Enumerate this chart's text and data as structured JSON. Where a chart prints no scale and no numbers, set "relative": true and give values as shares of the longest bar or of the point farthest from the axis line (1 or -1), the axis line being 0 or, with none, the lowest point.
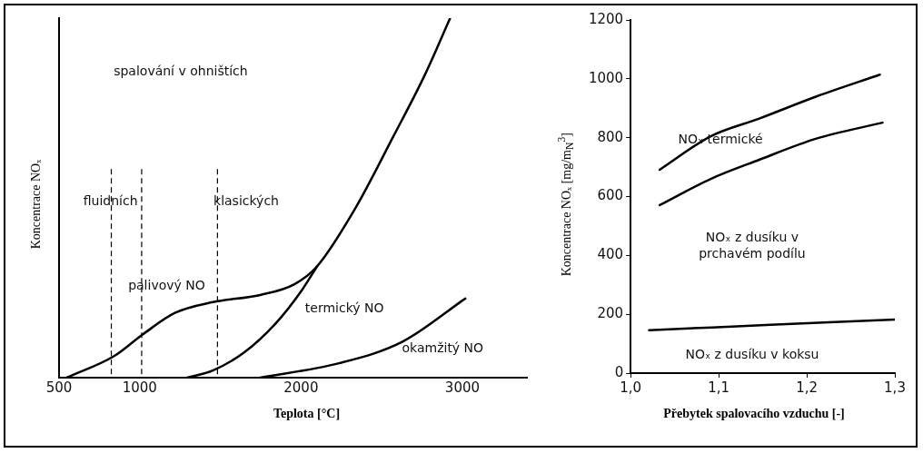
{
  "chart_data": [
    {
      "type": "line",
      "relative": true,
      "xlabel": "Teplota [°C]",
      "ylabel": "Koncentrace NOₓ",
      "xlim": [
        500,
        3400
      ],
      "xticks": [
        500,
        1000,
        2000,
        3000
      ],
      "tick_labels": "x",
      "marker": "none",
      "line_style": "solid",
      "grid": false,
      "legend": false,
      "series": [
        {
          "color": "#000000",
          "x": [
            547,
            841,
            1018,
            1218,
            1453,
            1747,
            1959,
            2100,
            2335,
            2571,
            2765,
            2924
          ],
          "values": [
            0,
            0.06,
            0.12,
            0.18,
            0.21,
            0.23,
            0.26,
            0.31,
            0.47,
            0.67,
            0.84,
            1.0
          ]
        },
        {
          "color": "#000000",
          "x": [
            1294,
            1453,
            1647,
            1841,
            2000,
            2100
          ],
          "values": [
            0,
            0.02,
            0.07,
            0.15,
            0.24,
            0.31
          ]
        },
        {
          "color": "#000000",
          "x": [
            1747,
            2235,
            2629,
            3018
          ],
          "values": [
            0,
            0.04,
            0.1,
            0.22
          ]
        }
      ],
      "ref_lines": [
        {
          "axis": "x",
          "value": 824,
          "color": "#000000",
          "line_style": "dashed"
        },
        {
          "axis": "x",
          "value": 1012,
          "color": "#000000",
          "line_style": "dashed"
        },
        {
          "axis": "x",
          "value": 1482,
          "color": "#000000",
          "line_style": "dashed"
        }
      ],
      "annotations": [
        "spalování v ohništích",
        "fluidních",
        "klasických",
        "palivový NO",
        "termický NO",
        "okamžitý NO"
      ]
    },
    {
      "type": "line",
      "xlabel": "Přebytek spalovacího vzduchu [-]",
      "ylabel": "Koncentrace NOₓ [mg/m$_{N}$$^{3}$]",
      "xlim": [
        1.0,
        1.3
      ],
      "xticks": [
        {
          "value": 1.0,
          "label": "1,0"
        },
        {
          "value": 1.1,
          "label": "1,1"
        },
        {
          "value": 1.2,
          "label": "1,2"
        },
        {
          "value": 1.3,
          "label": "1,3"
        }
      ],
      "ylim": [
        0,
        1200
      ],
      "yticks": [
        0,
        200,
        400,
        600,
        800,
        1000,
        1200
      ],
      "marker": "none",
      "line_style": "solid",
      "grid": false,
      "legend": false,
      "series": [
        {
          "color": "#000000",
          "x": [
            1.033,
            1.091,
            1.146,
            1.211,
            1.283
          ],
          "values": [
            691,
            805,
            865,
            940,
            1014
          ]
        },
        {
          "color": "#000000",
          "x": [
            1.033,
            1.091,
            1.146,
            1.211,
            1.286
          ],
          "values": [
            571,
            660,
            725,
            797,
            851
          ]
        },
        {
          "color": "#000000",
          "x": [
            1.021,
            1.159,
            1.3
          ],
          "values": [
            146,
            164,
            182
          ]
        }
      ],
      "annotations": [
        "NOₓ termické",
        "NOₓ z dusíku v prchavém podílu",
        "NOₓ z dusíku v koksu"
      ]
    }
  ]
}
